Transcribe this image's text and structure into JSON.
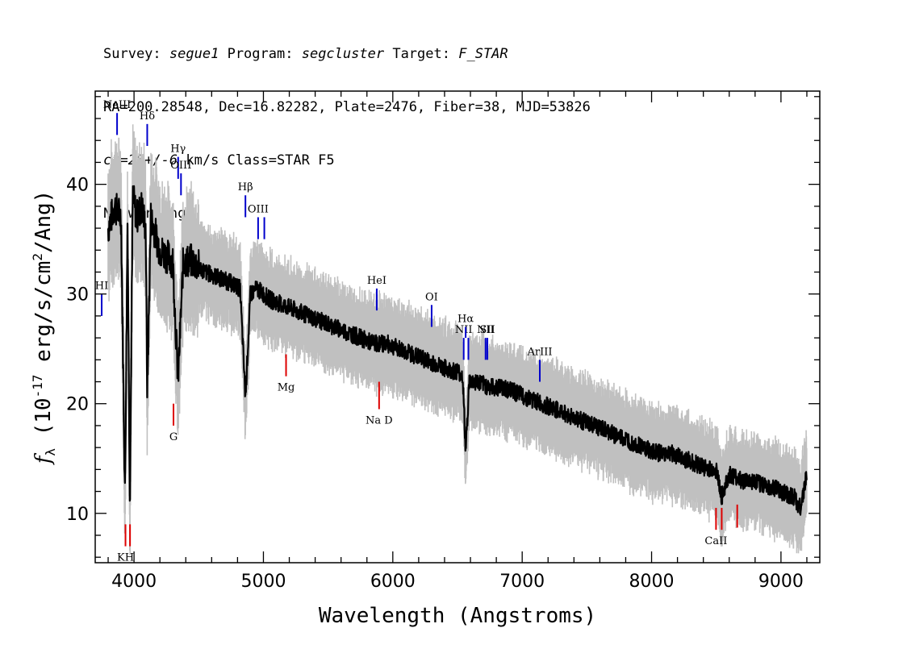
{
  "header": {
    "line1": {
      "survey_label": "Survey:",
      "survey": "segue1",
      "program_label": "Program:",
      "program": "segcluster",
      "target_label": "Target:",
      "target": "F_STAR"
    },
    "line2": "RA=200.28548, Dec=16.82282, Plate=2476, Fiber=38, MJD=53826",
    "line3": {
      "cz": "cz=28+/-6",
      "rest": " km/s Class=STAR F5"
    },
    "line4": "No warnings."
  },
  "chart_data": {
    "type": "line",
    "xlabel": "Wavelength (Angstroms)",
    "ylabel": "f_λ (10^-17 erg/s/cm^2/Ang)",
    "xlim": [
      3700,
      9300
    ],
    "ylim": [
      5.5,
      48.5
    ],
    "xticks": [
      4000,
      5000,
      6000,
      7000,
      8000,
      9000
    ],
    "yticks": [
      10,
      20,
      30,
      40
    ],
    "colors": {
      "flux": "#000000",
      "noise": "#c0c0c0",
      "emission": "#0000cc",
      "absorption": "#dd0000"
    },
    "series": [
      {
        "role": "flux",
        "x": [
          3800,
          3850,
          3900,
          3930,
          3950,
          3968,
          3990,
          4020,
          4060,
          4090,
          4102,
          4130,
          4200,
          4300,
          4340,
          4380,
          4450,
          4550,
          4650,
          4750,
          4820,
          4861,
          4900,
          4950,
          5050,
          5150,
          5250,
          5350,
          5450,
          5550,
          5650,
          5750,
          5850,
          5950,
          6050,
          6150,
          6250,
          6350,
          6450,
          6500,
          6540,
          6563,
          6590,
          6650,
          6750,
          6850,
          6950,
          7050,
          7150,
          7250,
          7350,
          7450,
          7550,
          7650,
          7750,
          7850,
          7950,
          8050,
          8150,
          8250,
          8350,
          8450,
          8500,
          8542,
          8600,
          8700,
          8800,
          8900,
          9000,
          9100,
          9150,
          9200
        ],
        "y": [
          36,
          38,
          37,
          11.5,
          37,
          11,
          39,
          37,
          38,
          36,
          21,
          37,
          34,
          33,
          22,
          33,
          33,
          32,
          31.5,
          31,
          30.5,
          20.5,
          30,
          30.5,
          29.5,
          29,
          28.5,
          28,
          27.5,
          27,
          26.5,
          26,
          25.5,
          25.5,
          25,
          24.5,
          24,
          23.5,
          23,
          23,
          22.5,
          15.5,
          22,
          22,
          21.5,
          21.5,
          21,
          20.5,
          20,
          19.5,
          19,
          18.5,
          18,
          17.5,
          17,
          16.5,
          16,
          15.5,
          15.5,
          15,
          14.5,
          14,
          14,
          11.5,
          13.5,
          13,
          12.8,
          12.5,
          12,
          11.5,
          10.5,
          13.5
        ]
      }
    ],
    "emission_lines": [
      {
        "label": "HI",
        "wave": 3750,
        "y1": 28,
        "y2": 30
      },
      {
        "label": "NeIII",
        "wave": 3869,
        "y1": 44.5,
        "y2": 46.5
      },
      {
        "label": "Hδ",
        "wave": 4102,
        "y1": 43.5,
        "y2": 45.5
      },
      {
        "label": "Hγ",
        "wave": 4341,
        "y1": 40.5,
        "y2": 42.5
      },
      {
        "label": "OIII",
        "wave": 4363,
        "y1": 39,
        "y2": 41
      },
      {
        "label": "Hβ",
        "wave": 4861,
        "y1": 37,
        "y2": 39
      },
      {
        "label": "OIII",
        "wave": 4959,
        "y1": 35,
        "y2": 37
      },
      {
        "label": "",
        "wave": 5007,
        "y1": 35,
        "y2": 37
      },
      {
        "label": "HeI",
        "wave": 5876,
        "y1": 28.5,
        "y2": 30.5
      },
      {
        "label": "OI",
        "wave": 6300,
        "y1": 27,
        "y2": 29
      },
      {
        "label": "NII",
        "wave": 6548,
        "y1": 24,
        "y2": 26
      },
      {
        "label": "Hα",
        "wave": 6563,
        "y1": 26,
        "y2": 27
      },
      {
        "label": "",
        "wave": 6584,
        "y1": 24,
        "y2": 26
      },
      {
        "label": "NII",
        "wave": 6717,
        "y1": 24,
        "y2": 26
      },
      {
        "label": "SII",
        "wave": 6731,
        "y1": 24,
        "y2": 26
      },
      {
        "label": "ArIII",
        "wave": 7136,
        "y1": 22,
        "y2": 24
      }
    ],
    "absorption_lines": [
      {
        "label": "KH",
        "wave": 3934,
        "y1": 7,
        "y2": 9
      },
      {
        "label": "",
        "wave": 3969,
        "y1": 7,
        "y2": 9
      },
      {
        "label": "G",
        "wave": 4305,
        "y1": 18,
        "y2": 20
      },
      {
        "label": "Mg",
        "wave": 5175,
        "y1": 22.5,
        "y2": 24.5
      },
      {
        "label": "Na D",
        "wave": 5894,
        "y1": 19.5,
        "y2": 22
      },
      {
        "label": "CaII",
        "wave": 8498,
        "y1": 8.5,
        "y2": 10.5
      },
      {
        "label": "",
        "wave": 8542,
        "y1": 8.5,
        "y2": 10.5
      },
      {
        "label": "",
        "wave": 8662,
        "y1": 8.7,
        "y2": 10.8
      }
    ]
  }
}
